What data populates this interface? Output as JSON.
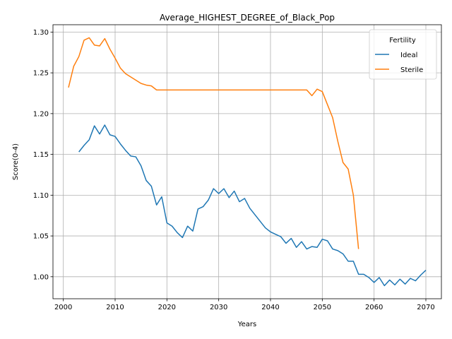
{
  "chart_data": {
    "type": "line",
    "title": "Average_HIGHEST_DEGREE_of_Black_Pop",
    "xlabel": "Years",
    "ylabel": "Score(0-4)",
    "xlim": [
      1998,
      2073
    ],
    "ylim": [
      0.973,
      1.309
    ],
    "xticks": [
      2000,
      2010,
      2020,
      2030,
      2040,
      2050,
      2060,
      2070
    ],
    "yticks": [
      1.0,
      1.05,
      1.1,
      1.15,
      1.2,
      1.25,
      1.3
    ],
    "grid": true,
    "legend": {
      "title": "Fertility",
      "placement": "upper right"
    },
    "series": [
      {
        "name": "Ideal",
        "color": "#1f77b4",
        "x": [
          2003,
          2004,
          2005,
          2006,
          2007,
          2008,
          2009,
          2010,
          2011,
          2012,
          2013,
          2014,
          2015,
          2016,
          2017,
          2018,
          2019,
          2020,
          2021,
          2022,
          2023,
          2024,
          2025,
          2026,
          2027,
          2028,
          2029,
          2030,
          2031,
          2032,
          2033,
          2034,
          2035,
          2036,
          2037,
          2038,
          2039,
          2040,
          2041,
          2042,
          2043,
          2044,
          2045,
          2046,
          2047,
          2048,
          2049,
          2050,
          2051,
          2052,
          2053,
          2054,
          2055,
          2056,
          2057,
          2058,
          2059,
          2060,
          2061,
          2062,
          2063,
          2064,
          2065,
          2066,
          2067,
          2068,
          2069,
          2070
        ],
        "y": [
          1.153,
          1.161,
          1.168,
          1.185,
          1.175,
          1.186,
          1.174,
          1.172,
          1.163,
          1.155,
          1.148,
          1.147,
          1.136,
          1.118,
          1.111,
          1.088,
          1.098,
          1.066,
          1.062,
          1.054,
          1.048,
          1.062,
          1.056,
          1.083,
          1.086,
          1.094,
          1.108,
          1.102,
          1.108,
          1.097,
          1.105,
          1.092,
          1.096,
          1.084,
          1.076,
          1.068,
          1.06,
          1.055,
          1.052,
          1.049,
          1.041,
          1.047,
          1.036,
          1.043,
          1.034,
          1.037,
          1.036,
          1.046,
          1.044,
          1.034,
          1.032,
          1.028,
          1.019,
          1.019,
          1.003,
          1.003,
          0.999,
          0.993,
          0.999,
          0.989,
          0.996,
          0.99,
          0.997,
          0.991,
          0.998,
          0.995,
          1.002,
          1.008
        ]
      },
      {
        "name": "Sterile",
        "color": "#ff7f0e",
        "x": [
          2001,
          2002,
          2003,
          2004,
          2005,
          2006,
          2007,
          2008,
          2009,
          2010,
          2011,
          2012,
          2013,
          2014,
          2015,
          2016,
          2017,
          2018,
          2019,
          2020,
          2021,
          2022,
          2023,
          2024,
          2025,
          2026,
          2027,
          2028,
          2029,
          2030,
          2031,
          2032,
          2033,
          2034,
          2035,
          2036,
          2037,
          2038,
          2039,
          2040,
          2041,
          2042,
          2043,
          2044,
          2045,
          2046,
          2047,
          2048,
          2049,
          2050,
          2051,
          2052,
          2053,
          2054,
          2055,
          2056,
          2057
        ],
        "y": [
          1.232,
          1.258,
          1.27,
          1.29,
          1.293,
          1.284,
          1.283,
          1.292,
          1.279,
          1.268,
          1.256,
          1.249,
          1.245,
          1.241,
          1.237,
          1.235,
          1.234,
          1.229,
          1.229,
          1.229,
          1.229,
          1.229,
          1.229,
          1.229,
          1.229,
          1.229,
          1.229,
          1.229,
          1.229,
          1.229,
          1.229,
          1.229,
          1.229,
          1.229,
          1.229,
          1.229,
          1.229,
          1.229,
          1.229,
          1.229,
          1.229,
          1.229,
          1.229,
          1.229,
          1.229,
          1.229,
          1.229,
          1.222,
          1.23,
          1.227,
          1.211,
          1.195,
          1.166,
          1.14,
          1.132,
          1.1,
          1.034
        ]
      }
    ]
  }
}
